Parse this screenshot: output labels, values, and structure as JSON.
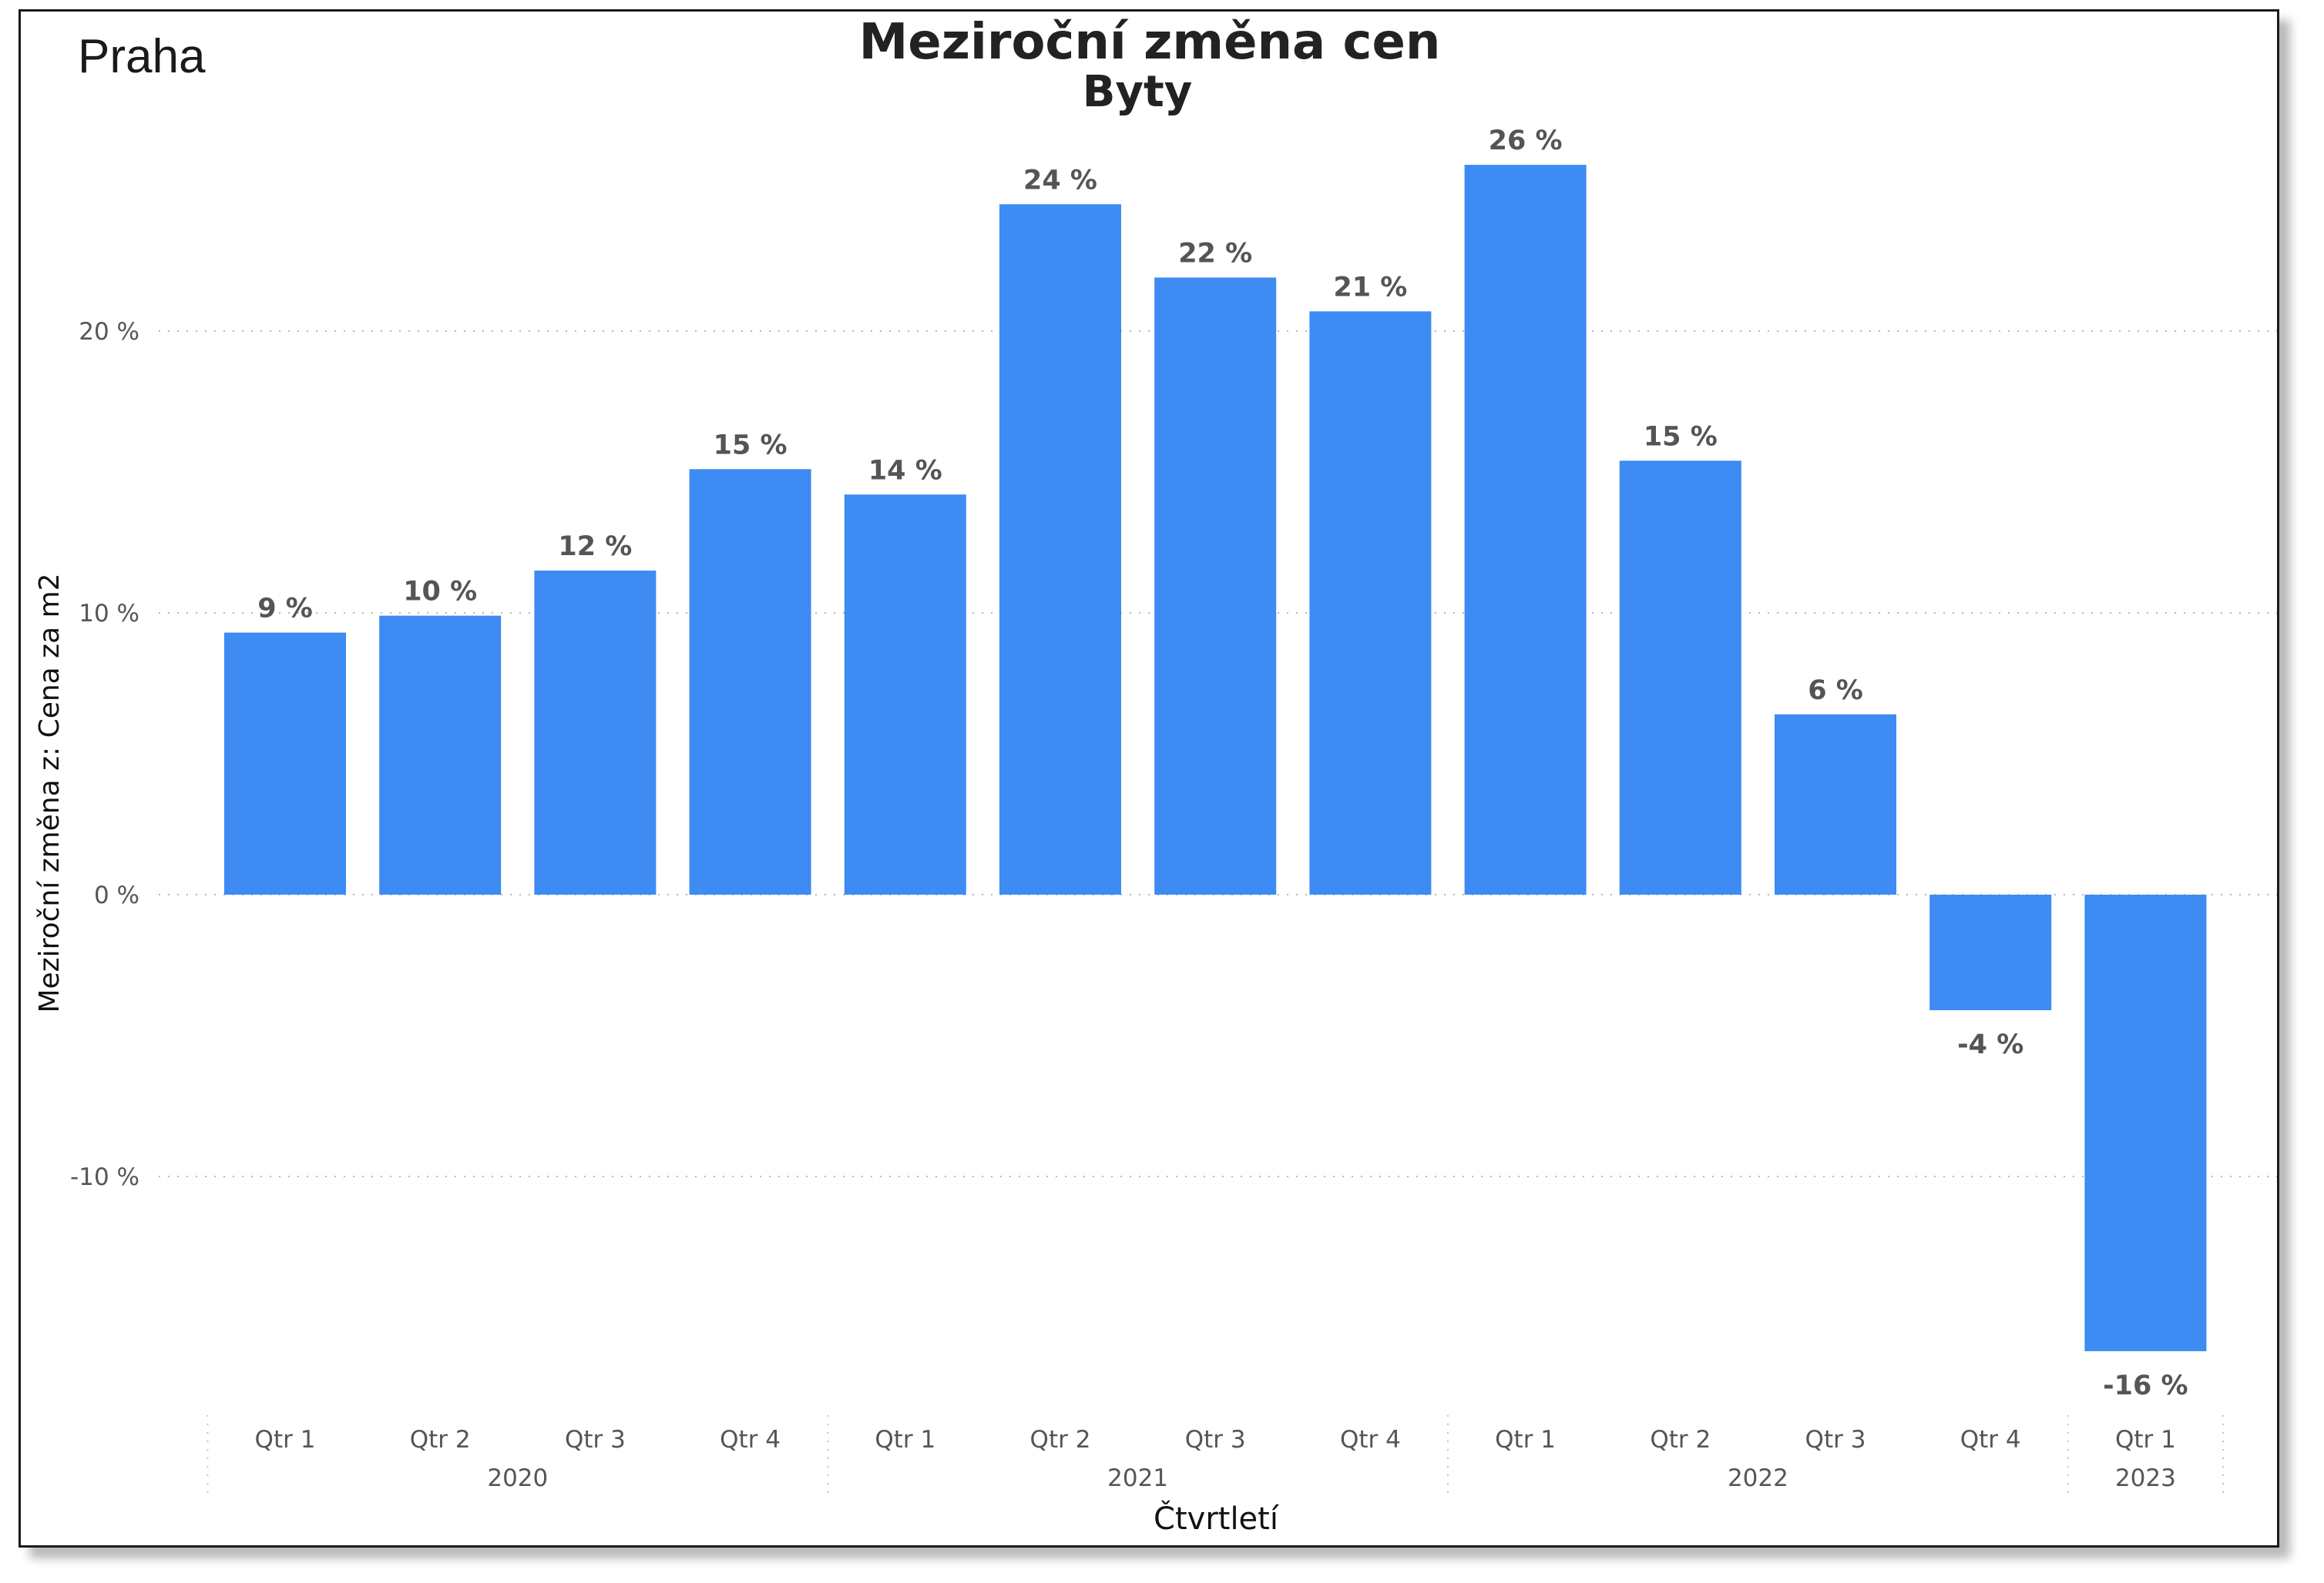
{
  "region_label": "Praha",
  "chart_data": {
    "type": "bar",
    "title": "Meziroční změna cen",
    "subtitle": "Byty",
    "xlabel": "Čtvrtletí",
    "ylabel": "Meziroční změna z: Cena za m2",
    "ylim": [
      -19,
      28
    ],
    "yticks": [
      20,
      10,
      0,
      -10
    ],
    "ytick_labels": [
      "20 %",
      "10 %",
      "0 %",
      "-10 %"
    ],
    "grid": true,
    "categories": [
      "Qtr 1",
      "Qtr 2",
      "Qtr 3",
      "Qtr 4",
      "Qtr 1",
      "Qtr 2",
      "Qtr 3",
      "Qtr 4",
      "Qtr 1",
      "Qtr 2",
      "Qtr 3",
      "Qtr 4",
      "Qtr 1"
    ],
    "groups": [
      {
        "label": "2020",
        "count": 4
      },
      {
        "label": "2021",
        "count": 4
      },
      {
        "label": "2022",
        "count": 4
      },
      {
        "label": "2023",
        "count": 1
      }
    ],
    "values": [
      9.3,
      9.9,
      11.5,
      15.1,
      14.2,
      24.5,
      21.9,
      20.7,
      25.9,
      15.4,
      6.4,
      -4.1,
      -16.2
    ],
    "value_labels": [
      "9 %",
      "10 %",
      "12 %",
      "15 %",
      "14 %",
      "24 %",
      "22 %",
      "21 %",
      "26 %",
      "15 %",
      "6 %",
      "-4 %",
      "-16 %"
    ],
    "bar_color": "#3d8bf3"
  }
}
